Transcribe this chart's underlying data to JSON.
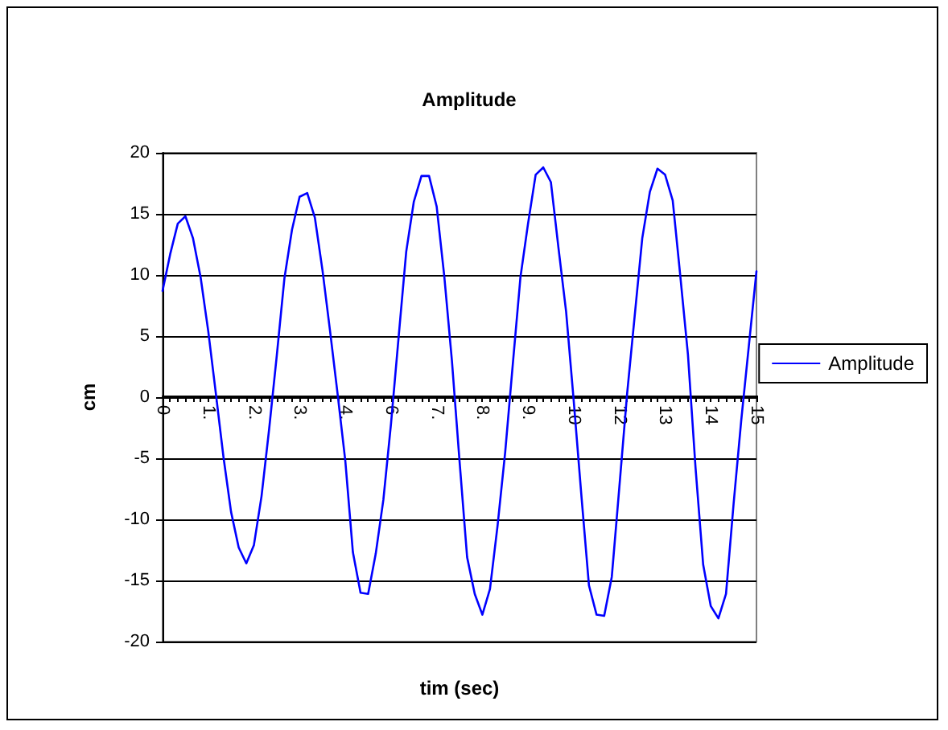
{
  "chart_data": {
    "type": "line",
    "title": "Amplitude",
    "xlabel": "tim (sec)",
    "ylabel": "cm",
    "categories": [
      "0",
      null,
      null,
      null,
      null,
      null,
      "1.",
      null,
      null,
      null,
      null,
      null,
      "2.",
      null,
      null,
      null,
      null,
      null,
      "3.",
      null,
      null,
      null,
      null,
      null,
      "4.",
      null,
      null,
      null,
      null,
      null,
      "6",
      null,
      null,
      null,
      null,
      null,
      "7.",
      null,
      null,
      null,
      null,
      null,
      "8.",
      null,
      null,
      null,
      null,
      null,
      "9.",
      null,
      null,
      null,
      null,
      null,
      "10",
      null,
      null,
      null,
      null,
      null,
      "12",
      null,
      null,
      null,
      null,
      null,
      "13",
      null,
      null,
      null,
      null,
      null,
      "14",
      null,
      null,
      null,
      null,
      null,
      "15"
    ],
    "series": [
      {
        "name": "Amplitude",
        "color": "#0000ff",
        "values": [
          8.7,
          11.7,
          14.2,
          14.8,
          13.0,
          9.8,
          5.4,
          0.3,
          -4.9,
          -9.4,
          -12.3,
          -13.6,
          -12.1,
          -8.1,
          -2.6,
          3.4,
          9.7,
          13.7,
          16.4,
          16.7,
          14.7,
          10.4,
          5.4,
          0.2,
          -5.2,
          -12.7,
          -16.0,
          -16.1,
          -12.8,
          -8.4,
          -2.2,
          4.9,
          11.9,
          16.0,
          18.1,
          18.1,
          15.6,
          9.9,
          3.0,
          -5.2,
          -13.1,
          -16.1,
          -17.8,
          -15.7,
          -10.5,
          -4.5,
          2.7,
          9.8,
          14.2,
          18.2,
          18.8,
          17.6,
          12.2,
          7.0,
          -0.3,
          -8.0,
          -15.4,
          -17.8,
          -17.9,
          -14.7,
          -7.3,
          0.2,
          6.6,
          13.0,
          16.8,
          18.7,
          18.2,
          16.1,
          9.9,
          3.5,
          -5.8,
          -13.7,
          -17.1,
          -18.1,
          -16.1,
          -8.7,
          -1.9,
          4.2,
          10.3
        ]
      }
    ],
    "ylim": [
      -20,
      20
    ],
    "yticks": [
      -20,
      -15,
      -10,
      -5,
      0,
      5,
      10,
      15,
      20
    ],
    "grid": "y",
    "legend": "right",
    "marker": "none",
    "line_style": "solid"
  }
}
